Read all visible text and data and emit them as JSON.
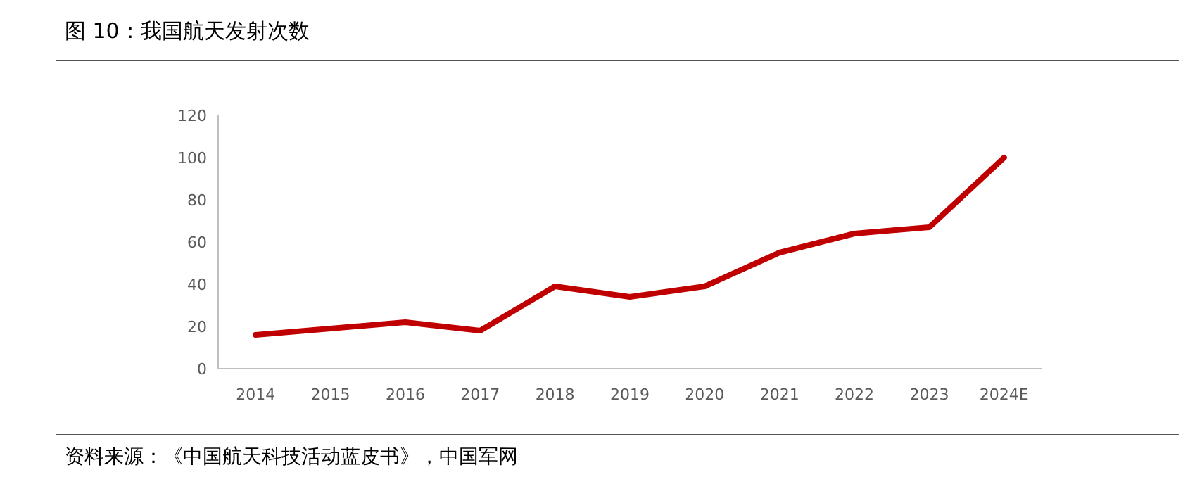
{
  "chart_data": {
    "type": "line",
    "title": "图 10：我国航天发射次数",
    "categories": [
      "2014",
      "2015",
      "2016",
      "2017",
      "2018",
      "2019",
      "2020",
      "2021",
      "2022",
      "2023",
      "2024E"
    ],
    "values": [
      16,
      19,
      22,
      18,
      39,
      34,
      39,
      55,
      64,
      67,
      100
    ],
    "color": "#c00000",
    "ylim": [
      0,
      120
    ],
    "yticks": [
      0,
      20,
      40,
      60,
      80,
      100,
      120
    ],
    "annotations": [
      "资料来源：《中国航天科技活动蓝皮书》，中国军网"
    ]
  }
}
